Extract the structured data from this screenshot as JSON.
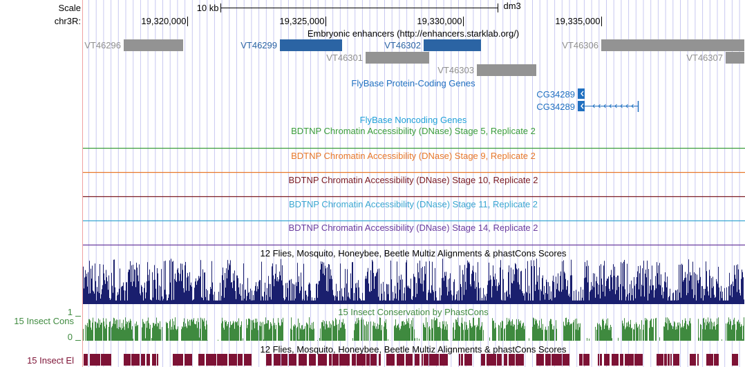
{
  "browser": {
    "scale_label": "Scale",
    "chrom_label": "chr3R:",
    "scale_bar_label": "10 kb",
    "assembly": "dm3",
    "view": {
      "start": 19316210,
      "end": 19340210
    },
    "scale_bar": {
      "start": 19321200,
      "end": 19331250
    },
    "ticks": [
      {
        "pos": 19320000,
        "label": "19,320,000"
      },
      {
        "pos": 19325000,
        "label": "19,325,000"
      },
      {
        "pos": 19330000,
        "label": "19,330,000"
      },
      {
        "pos": 19335000,
        "label": "19,335,000"
      }
    ]
  },
  "tracks": {
    "enhancers": {
      "title": "Embryonic enhancers (http://enhancers.starklab.org/)",
      "items": [
        {
          "name": "VT46296",
          "start": 19317700,
          "end": 19319850,
          "row": 0,
          "color": "#939393",
          "text_color": "#8f8f8f"
        },
        {
          "name": "VT46299",
          "start": 19323350,
          "end": 19325600,
          "row": 0,
          "color": "#2b64a4",
          "text_color": "#2b64a4"
        },
        {
          "name": "VT46302",
          "start": 19328550,
          "end": 19330650,
          "row": 0,
          "color": "#2b64a4",
          "text_color": "#2b64a4"
        },
        {
          "name": "VT46306",
          "start": 19335000,
          "end": 19340200,
          "row": 0,
          "color": "#939393",
          "text_color": "#8f8f8f"
        },
        {
          "name": "VT46301",
          "start": 19326450,
          "end": 19328750,
          "row": 1,
          "color": "#939393",
          "text_color": "#8f8f8f"
        },
        {
          "name": "VT46307",
          "start": 19339500,
          "end": 19340200,
          "row": 1,
          "color": "#939393",
          "text_color": "#8f8f8f"
        },
        {
          "name": "VT46303",
          "start": 19330500,
          "end": 19332650,
          "row": 2,
          "color": "#939393",
          "text_color": "#8f8f8f"
        }
      ]
    },
    "coding_genes": {
      "title": "FlyBase Protein-Coding Genes",
      "genes": [
        {
          "name": "CG34289",
          "start": 19334150,
          "end": 19334400,
          "line_end": 19334400,
          "row": 0
        },
        {
          "name": "CG34289",
          "start": 19334150,
          "end": 19334400,
          "line_end": 19336350,
          "row": 1
        }
      ]
    },
    "noncoding_genes": {
      "title": "FlyBase Noncoding Genes"
    },
    "dnase": [
      {
        "title": "BDTNP Chromatin Accessibility (DNase) Stage 5, Replicate 2",
        "color": "#3a9d3a"
      },
      {
        "title": "BDTNP Chromatin Accessibility (DNase) Stage 9, Replicate 2",
        "color": "#e8782a"
      },
      {
        "title": "BDTNP Chromatin Accessibility (DNase) Stage 10, Replicate 2",
        "color": "#7a1a22"
      },
      {
        "title": "BDTNP Chromatin Accessibility (DNase) Stage 11, Replicate 2",
        "color": "#3aa6d1"
      },
      {
        "title": "BDTNP Chromatin Accessibility (DNase) Stage 14, Replicate 2",
        "color": "#6a3c9e"
      }
    ],
    "multiz": {
      "title": "12 Flies, Mosquito, Honeybee, Beetle Multiz Alignments & phastCons Scores",
      "color": "#1a1f6e"
    },
    "phastcons": {
      "title": "15 Insect Conservation by PhastCons",
      "side_label": "15 Insect Cons",
      "y_max_label": "1",
      "y_min_label": "0",
      "color": "#3f8a3f"
    },
    "elements": {
      "title": "12 Flies, Mosquito, Honeybee, Beetle Multiz Alignments & phastCons Scores",
      "side_label": "15 Insect El",
      "color": "#7d1235"
    }
  },
  "colors": {
    "guide_line": "#c8c8f0",
    "left_border": "#f0a0a0",
    "title_dark": "#000000",
    "title_blue": "#1f6fc0",
    "gene_blue": "#1f6fc0"
  }
}
